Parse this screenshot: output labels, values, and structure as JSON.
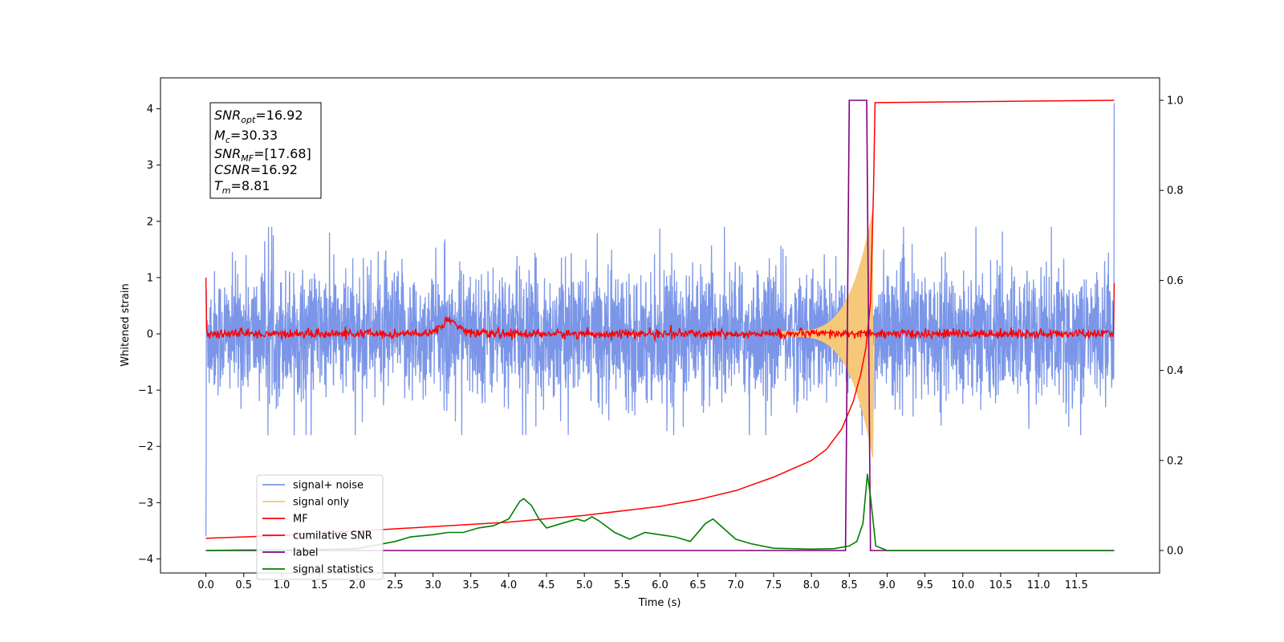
{
  "chart_data": {
    "type": "line",
    "title": "",
    "xlabel": "Time (s)",
    "ylabel": "Whitened strain",
    "xlim": [
      -0.6,
      12.6
    ],
    "ylim": [
      -4.25,
      4.55
    ],
    "y2lim": [
      -0.05,
      1.05
    ],
    "x_ticks": [
      "0.0",
      "0.5",
      "1.0",
      "1.5",
      "2.0",
      "2.5",
      "3.0",
      "3.5",
      "4.0",
      "4.5",
      "5.0",
      "5.5",
      "6.0",
      "6.5",
      "7.0",
      "7.5",
      "8.0",
      "8.5",
      "9.0",
      "9.5",
      "10.0",
      "10.5",
      "11.0",
      "11.5"
    ],
    "y_ticks": [
      "4",
      "3",
      "2",
      "1",
      "0",
      "−1",
      "−2",
      "−3",
      "−4"
    ],
    "y2_ticks": [
      "1.0",
      "0.8",
      "0.6",
      "0.4",
      "0.2",
      "0.0"
    ],
    "grid": false,
    "legend_position": "lower-left",
    "annotation": {
      "snr_opt": {
        "main": "SNR",
        "sub": "opt",
        "value": "=16.92"
      },
      "mc": {
        "main": "M",
        "sub": "c",
        "value": "=30.33"
      },
      "snr_mf": {
        "main": "SNR",
        "sub": "MF",
        "value": "=[17.68]"
      },
      "csnr": {
        "main": "CSNR",
        "sub": "",
        "value": "=16.92"
      },
      "tm": {
        "main": "T",
        "sub": "m",
        "value": "=8.81"
      }
    },
    "series": [
      {
        "name": "signal+ noise",
        "color": "#7b96e8",
        "axis": "left",
        "noise_envelope": [
          -1.8,
          1.9
        ],
        "x_range": [
          0.0,
          12.0
        ]
      },
      {
        "name": "signal only",
        "color": "#f5c87a",
        "axis": "left",
        "chirp_end": 8.81,
        "peak_amplitude": 2.2
      },
      {
        "name": "MF",
        "color": "#ff0000",
        "axis": "left",
        "baseline": 0.0,
        "noise_amplitude": 0.08,
        "bump": {
          "x": 3.22,
          "y": 0.32
        }
      },
      {
        "name": "cumilative SNR",
        "color": "#ff0000",
        "axis": "right",
        "x": [
          0.0,
          1.0,
          2.0,
          3.0,
          4.0,
          5.0,
          6.0,
          6.5,
          7.0,
          7.5,
          8.0,
          8.2,
          8.4,
          8.55,
          8.65,
          8.72,
          8.78,
          8.82,
          8.84,
          12.0
        ],
        "y": [
          0.027,
          0.033,
          0.043,
          0.053,
          0.063,
          0.078,
          0.098,
          0.113,
          0.133,
          0.163,
          0.2,
          0.225,
          0.27,
          0.33,
          0.39,
          0.45,
          0.55,
          0.8,
          0.995,
          1.0
        ]
      },
      {
        "name": "label",
        "color": "#7f007f",
        "axis": "right",
        "x": [
          0.0,
          8.45,
          8.5,
          8.73,
          8.78,
          12.0
        ],
        "y": [
          0.0,
          0.0,
          1.0,
          1.0,
          0.0,
          0.0
        ]
      },
      {
        "name": "signal statistics",
        "color": "#008000",
        "axis": "right",
        "x": [
          0.0,
          0.5,
          1.0,
          1.5,
          2.0,
          2.5,
          2.7,
          3.0,
          3.2,
          3.4,
          3.6,
          3.8,
          4.0,
          4.15,
          4.2,
          4.3,
          4.4,
          4.5,
          4.7,
          4.9,
          5.0,
          5.1,
          5.2,
          5.4,
          5.6,
          5.8,
          6.0,
          6.2,
          6.4,
          6.6,
          6.7,
          6.8,
          7.0,
          7.2,
          7.5,
          8.0,
          8.3,
          8.5,
          8.6,
          8.68,
          8.74,
          8.78,
          8.85,
          9.0,
          12.0
        ],
        "y": [
          0.0,
          0.001,
          0.001,
          0.002,
          0.004,
          0.02,
          0.03,
          0.035,
          0.04,
          0.04,
          0.05,
          0.055,
          0.07,
          0.11,
          0.115,
          0.1,
          0.07,
          0.05,
          0.06,
          0.07,
          0.065,
          0.075,
          0.065,
          0.04,
          0.025,
          0.04,
          0.035,
          0.03,
          0.02,
          0.06,
          0.07,
          0.055,
          0.025,
          0.015,
          0.005,
          0.003,
          0.004,
          0.01,
          0.02,
          0.06,
          0.17,
          0.12,
          0.01,
          0.0,
          0.0
        ]
      }
    ]
  }
}
